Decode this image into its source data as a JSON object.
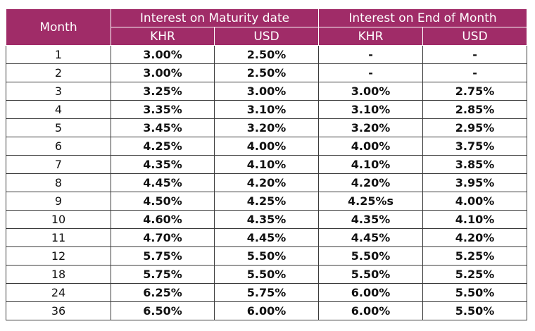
{
  "table": {
    "header_month": "Month",
    "group_maturity": "Interest on Maturity date",
    "group_end_month": "Interest on End of Month",
    "currencies": [
      "KHR",
      "USD",
      "KHR",
      "USD"
    ],
    "rows": [
      {
        "month": "1",
        "values": [
          "3.00%",
          "2.50%",
          "-",
          "-"
        ]
      },
      {
        "month": "2",
        "values": [
          "3.00%",
          "2.50%",
          "-",
          "-"
        ]
      },
      {
        "month": "3",
        "values": [
          "3.25%",
          "3.00%",
          "3.00%",
          "2.75%"
        ]
      },
      {
        "month": "4",
        "values": [
          "3.35%",
          "3.10%",
          "3.10%",
          "2.85%"
        ]
      },
      {
        "month": "5",
        "values": [
          "3.45%",
          "3.20%",
          "3.20%",
          "2.95%"
        ]
      },
      {
        "month": "6",
        "values": [
          "4.25%",
          "4.00%",
          "4.00%",
          "3.75%"
        ]
      },
      {
        "month": "7",
        "values": [
          "4.35%",
          "4.10%",
          "4.10%",
          "3.85%"
        ]
      },
      {
        "month": "8",
        "values": [
          "4.45%",
          "4.20%",
          "4.20%",
          "3.95%"
        ]
      },
      {
        "month": "9",
        "values": [
          "4.50%",
          "4.25%",
          "4.25%s",
          "4.00%"
        ]
      },
      {
        "month": "10",
        "values": [
          "4.60%",
          "4.35%",
          "4.35%",
          "4.10%"
        ]
      },
      {
        "month": "11",
        "values": [
          "4.70%",
          "4.45%",
          "4.45%",
          "4.20%"
        ]
      },
      {
        "month": "12",
        "values": [
          "5.75%",
          "5.50%",
          "5.50%",
          "5.25%"
        ]
      },
      {
        "month": "18",
        "values": [
          "5.75%",
          "5.50%",
          "5.50%",
          "5.25%"
        ]
      },
      {
        "month": "24",
        "values": [
          "6.25%",
          "5.75%",
          "6.00%",
          "5.50%"
        ]
      },
      {
        "month": "36",
        "values": [
          "6.50%",
          "6.00%",
          "6.00%",
          "5.50%"
        ]
      }
    ]
  },
  "colors": {
    "header_bg": "#a02c68",
    "header_text": "#ffffff",
    "border": "#3a3a3a"
  }
}
